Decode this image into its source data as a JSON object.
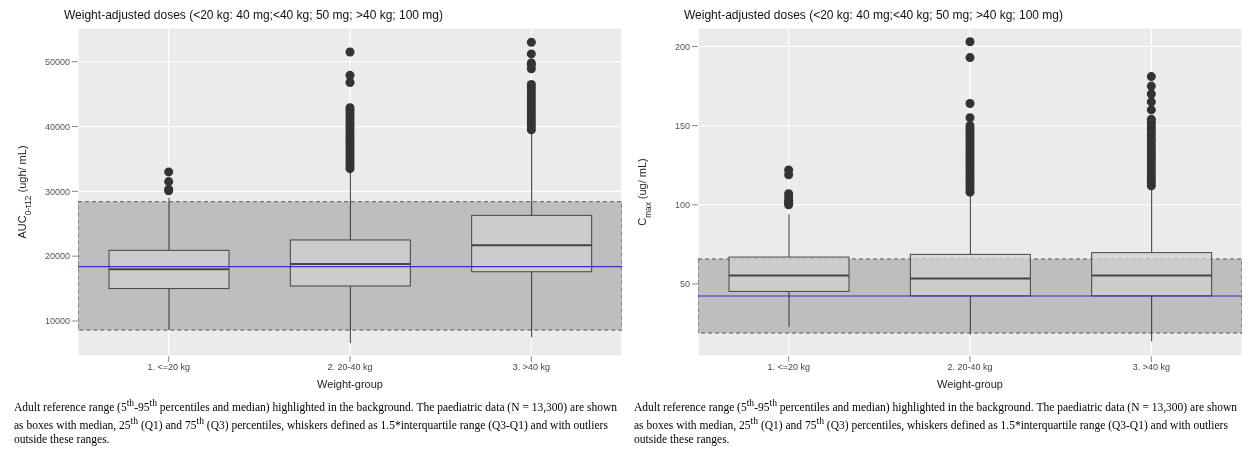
{
  "chart_data": [
    {
      "type": "box",
      "title": "Weight-adjusted doses (<20 kg: 40 mg;<40 kg; 50 mg; >40 kg; 100 mg)",
      "xlabel": "Weight-group",
      "ylabel": "AUC$_{0-τ12}$ (ugh/ mL)",
      "categories": [
        "1. <=20 kg",
        "2. 20-40 kg",
        "3. >40 kg"
      ],
      "boxes": [
        {
          "low": 8600,
          "q1": 15000,
          "median": 18000,
          "q3": 20900,
          "high": 29000,
          "outliers": [
            30100,
            30300,
            31500,
            33000
          ]
        },
        {
          "low": 6600,
          "q1": 15400,
          "median": 18800,
          "q3": 22500,
          "high": 33200,
          "outliers": [
            33500,
            34000,
            34500,
            35000,
            35500,
            36000,
            36500,
            37000,
            37500,
            38000,
            38500,
            39000,
            39500,
            40000,
            40500,
            41000,
            41500,
            42000,
            42500,
            42900,
            46800,
            47900,
            51500
          ]
        },
        {
          "low": 7500,
          "q1": 17600,
          "median": 21700,
          "q3": 26300,
          "high": 39300,
          "outliers": [
            39500,
            40000,
            40500,
            41000,
            41500,
            42000,
            42500,
            43000,
            43500,
            44000,
            44500,
            45000,
            45500,
            46000,
            46500,
            48900,
            49500,
            49800,
            51200,
            53000
          ]
        }
      ],
      "color": "#d0d0d0",
      "ylim": [
        4600,
        55200
      ],
      "yticks": [
        10000,
        20000,
        30000,
        40000,
        50000
      ],
      "grid": true,
      "bands": [
        {
          "axis": "y",
          "from": 8600,
          "to": 28400,
          "color": "#bebebe"
        }
      ],
      "ref_lines": [
        {
          "axis": "y",
          "value": 18400,
          "color": "#3333cc"
        }
      ],
      "annotations": [
        "Adult reference range (5$^{th}$-95$^{th}$ percentiles and median) highlighted in the background.  The paediatric data (N = 13,300) are shown as boxes with median, 25$^{th}$ (Q1) and 75$^{th}$ (Q3) percentiles, whiskers defined as 1.5*interquartile range (Q3-Q1) and with outliers outside these ranges."
      ]
    },
    {
      "type": "box",
      "title": "Weight-adjusted doses (<20 kg: 40 mg;<40 kg; 50 mg; >40 kg; 100 mg)",
      "xlabel": "Weight-group",
      "ylabel": "C$_{max}$ (ug/ mL)",
      "categories": [
        "1. <=20 kg",
        "2. 20-40 kg",
        "3. >40 kg"
      ],
      "boxes": [
        {
          "low": 23,
          "q1": 45.3,
          "median": 55.3,
          "q3": 67,
          "high": 94,
          "outliers": [
            100,
            101,
            102,
            103,
            105,
            107,
            119,
            122
          ]
        },
        {
          "low": 18,
          "q1": 42.5,
          "median": 53.5,
          "q3": 68.7,
          "high": 107,
          "outliers": [
            108,
            110,
            112,
            114,
            116,
            118,
            120,
            122,
            124,
            126,
            128,
            130,
            132,
            134,
            136,
            138,
            140,
            142,
            144,
            146,
            148,
            150,
            155,
            164,
            193,
            203
          ]
        },
        {
          "low": 13.8,
          "q1": 42.5,
          "median": 55.3,
          "q3": 69.8,
          "high": 111,
          "outliers": [
            112,
            114,
            116,
            118,
            120,
            122,
            124,
            126,
            128,
            130,
            132,
            134,
            136,
            138,
            140,
            142,
            144,
            146,
            148,
            150,
            152,
            154,
            160,
            165,
            170,
            175,
            181
          ]
        }
      ],
      "color": "#d0d0d0",
      "ylim": [
        4.5,
        211.7
      ],
      "yticks": [
        50,
        100,
        150,
        200
      ],
      "grid": true,
      "bands": [
        {
          "axis": "y",
          "from": 19,
          "to": 65.8,
          "color": "#bebebe"
        }
      ],
      "ref_lines": [
        {
          "axis": "y",
          "value": 42.4,
          "color": "#3333cc"
        }
      ],
      "annotations": [
        "Adult reference range (5$^{th}$-95$^{th}$ percentiles and median) highlighted in the background.  The paediatric data (N = 13,300) are shown as boxes with median, 25$^{th}$ (Q1) and 75$^{th}$ (Q3) percentiles, whiskers defined as 1.5*interquartile range (Q3-Q1) and with outliers outside these ranges."
      ]
    }
  ]
}
